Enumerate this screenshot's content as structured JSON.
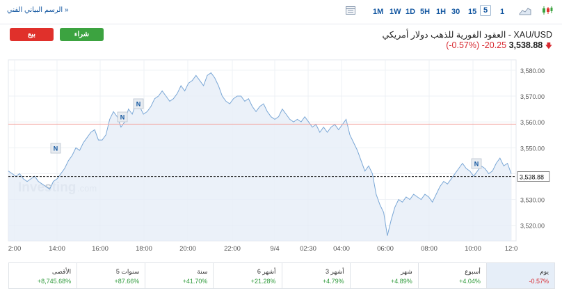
{
  "toolbar": {
    "technical_chart_link": "الرسم البياني الفني »",
    "timeframes": [
      "1M",
      "1W",
      "1D",
      "5H",
      "1H",
      "30",
      "15",
      "5",
      "1"
    ],
    "active_timeframe": "5"
  },
  "trade": {
    "buy_label": "شراء",
    "sell_label": "بيع"
  },
  "instrument": {
    "name": "XAU/USD - العقود الفورية للذهب دولار أمريكي",
    "price": "3,538.88",
    "change": "-20.25",
    "change_pct": "(-0.57%)"
  },
  "chart_data": {
    "type": "area",
    "x_labels": [
      "2:00",
      "14:00",
      "16:00",
      "18:00",
      "20:00",
      "22:00",
      "9/4",
      "02:30",
      "04:00",
      "06:00",
      "08:00",
      "10:00",
      "12:0"
    ],
    "y_ticks": [
      "3,580.00",
      "3,570.00",
      "3,560.00",
      "3,550.00",
      "3,540.00",
      "3,530.00",
      "3,520.00"
    ],
    "ylim": [
      3514,
      3584
    ],
    "series": [
      {
        "values": [
          3541,
          3540,
          3539,
          3540,
          3538,
          3537,
          3538,
          3539,
          3537,
          3536,
          3535,
          3534,
          3537,
          3538,
          3540,
          3542,
          3545,
          3547,
          3550,
          3549,
          3552,
          3554,
          3556,
          3557,
          3553,
          3553,
          3555,
          3561,
          3564,
          3562,
          3558,
          3560,
          3565,
          3563,
          3567,
          3566,
          3563,
          3564,
          3566,
          3569,
          3570,
          3572,
          3570,
          3568,
          3569,
          3571,
          3574,
          3572,
          3575,
          3576,
          3578,
          3576,
          3574,
          3578,
          3579,
          3577,
          3574,
          3570,
          3568,
          3567,
          3569,
          3570,
          3570,
          3568,
          3569,
          3566,
          3564,
          3566,
          3567,
          3564,
          3562,
          3561,
          3562,
          3565,
          3563,
          3561,
          3560,
          3561,
          3560,
          3562,
          3560,
          3558,
          3559,
          3556,
          3558,
          3556,
          3558,
          3559,
          3557,
          3559,
          3561,
          3555,
          3552,
          3549,
          3545,
          3541,
          3543,
          3540,
          3532,
          3528,
          3525,
          3516,
          3522,
          3527,
          3530,
          3529,
          3531,
          3530,
          3532,
          3531,
          3530,
          3532,
          3531,
          3529,
          3532,
          3535,
          3537,
          3536,
          3538,
          3540,
          3542,
          3544,
          3542,
          3541,
          3539,
          3541,
          3543,
          3542,
          3540,
          3541,
          3544,
          3546,
          3543,
          3544,
          3540
        ]
      }
    ],
    "current_price_label": "3,538.88",
    "reference_line_value": 3559.13,
    "news_markers": [
      "N",
      "N",
      "N",
      "N"
    ],
    "watermark": "Investing",
    "watermark_suffix": ".com",
    "grid": true
  },
  "performance": [
    {
      "label": "يوم",
      "value": "-0.57%",
      "sign": "neg",
      "active": true
    },
    {
      "label": "أسبوع",
      "value": "+4.04%",
      "sign": "pos",
      "active": false
    },
    {
      "label": "شهر",
      "value": "+4.89%",
      "sign": "pos",
      "active": false
    },
    {
      "label": "3 أشهر",
      "value": "+4.79%",
      "sign": "pos",
      "active": false
    },
    {
      "label": "6 أشهر",
      "value": "+21.28%",
      "sign": "pos",
      "active": false
    },
    {
      "label": "سنة",
      "value": "+41.70%",
      "sign": "pos",
      "active": false
    },
    {
      "label": "5 سنوات",
      "value": "+87.66%",
      "sign": "pos",
      "active": false
    },
    {
      "label": "الأقصى",
      "value": "+8,745.68%",
      "sign": "pos",
      "active": false
    }
  ],
  "colors": {
    "buy": "#3ca340",
    "sell": "#e0302b",
    "line": "#7aa7d6",
    "area": "#e6eef7",
    "ref_line": "#f2a9a4",
    "link": "#1256a0"
  },
  "icons": [
    "candlestick-icon",
    "area-chart-icon",
    "table-icon"
  ]
}
